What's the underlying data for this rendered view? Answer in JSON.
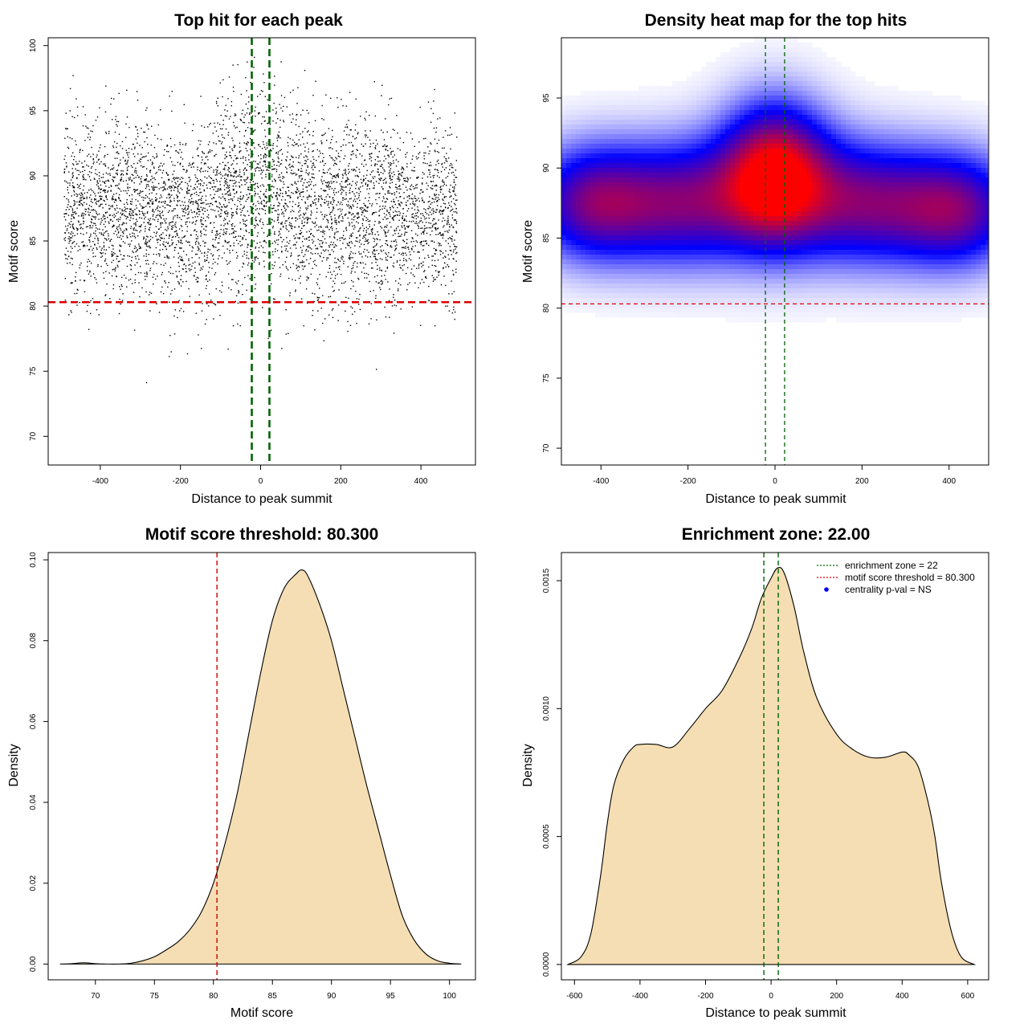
{
  "chart_data": [
    {
      "type": "scatter",
      "title": "Top hit for each peak",
      "xlabel": "Distance to peak summit",
      "ylabel": "Motif score",
      "xlim": [
        -530,
        536
      ],
      "ylim": [
        67.8,
        100.6
      ],
      "x_ticks": [
        -400,
        -200,
        0,
        200,
        400
      ],
      "y_ticks": [
        70,
        75,
        80,
        85,
        90,
        95,
        100
      ],
      "point_count": 5200,
      "reference_lines": {
        "vertical": [
          -22,
          22
        ],
        "horizontal": 80.3
      },
      "line_colors": {
        "vertical": "#006400",
        "horizontal": "#dd0000"
      },
      "points_color": "#000000"
    },
    {
      "type": "heatmap",
      "title": "Density heat map for the top hits",
      "xlabel": "Distance to peak summit",
      "ylabel": "Motif score",
      "xlim": [
        -491,
        491
      ],
      "ylim": [
        68.8,
        99.3
      ],
      "x_ticks": [
        -400,
        -200,
        0,
        200,
        400
      ],
      "y_ticks": [
        70,
        75,
        80,
        85,
        90,
        95
      ],
      "reference_lines": {
        "vertical": [
          -22,
          22
        ],
        "horizontal": 80.3
      },
      "line_colors": {
        "vertical": "#006400",
        "horizontal": "#dd0000"
      },
      "color_scale": [
        "#ffffff",
        "#0000ff",
        "#ff0000"
      ],
      "density_components": [
        {
          "x": -420,
          "y": 87.5,
          "sx": 100,
          "sy": 2.8,
          "w": 0.85
        },
        {
          "x": -200,
          "y": 87.5,
          "sx": 120,
          "sy": 3.0,
          "w": 0.85
        },
        {
          "x": 0,
          "y": 89.5,
          "sx": 85,
          "sy": 3.4,
          "w": 1.3
        },
        {
          "x": 200,
          "y": 87.5,
          "sx": 120,
          "sy": 3.0,
          "w": 0.85
        },
        {
          "x": 420,
          "y": 87.0,
          "sx": 100,
          "sy": 2.8,
          "w": 0.85
        }
      ]
    },
    {
      "type": "area",
      "title": "Motif score threshold: 80.300",
      "xlabel": "Motif score",
      "ylabel": "Density",
      "xlim": [
        66.0,
        102.2
      ],
      "ylim": [
        -0.0039,
        0.1018
      ],
      "x_ticks": [
        70,
        75,
        80,
        85,
        90,
        95,
        100
      ],
      "y_ticks": [
        0.0,
        0.02,
        0.04,
        0.06,
        0.08,
        0.1
      ],
      "y_tick_labels": [
        "0.00",
        "0.02",
        "0.04",
        "0.06",
        "0.08",
        "0.10"
      ],
      "x": [
        67,
        68,
        69,
        70,
        71,
        72,
        73,
        74,
        75,
        76,
        77,
        78,
        79,
        80,
        81,
        82,
        83,
        84,
        85,
        86,
        87,
        87.5,
        88,
        89,
        90,
        91,
        92,
        93,
        94,
        95,
        96,
        97,
        98,
        99,
        100,
        101
      ],
      "y": [
        0.0,
        0.0001,
        0.0003,
        0.0001,
        0.0,
        0.0,
        0.0002,
        0.0008,
        0.0018,
        0.0035,
        0.0055,
        0.0085,
        0.013,
        0.02,
        0.03,
        0.042,
        0.057,
        0.072,
        0.085,
        0.093,
        0.0965,
        0.0975,
        0.096,
        0.089,
        0.08,
        0.068,
        0.056,
        0.044,
        0.033,
        0.022,
        0.012,
        0.006,
        0.0025,
        0.0008,
        0.0002,
        0.0
      ],
      "fill_color": "#f5deb3",
      "reference_lines": {
        "vertical": [
          80.3
        ]
      },
      "line_colors": {
        "vertical": "#cc0000"
      }
    },
    {
      "type": "area",
      "title": "Enrichment zone: 22.00",
      "xlabel": "Distance to peak summit",
      "ylabel": "Density",
      "xlim": [
        -640,
        664
      ],
      "ylim": [
        -6e-05,
        0.00161
      ],
      "x_ticks": [
        -600,
        -400,
        -200,
        0,
        200,
        400,
        600
      ],
      "y_ticks": [
        0.0,
        0.0005,
        0.001,
        0.0015
      ],
      "y_tick_labels": [
        "0.0000",
        "0.0005",
        "0.0010",
        "0.0015"
      ],
      "x": [
        -620,
        -580,
        -550,
        -520,
        -500,
        -480,
        -450,
        -420,
        -400,
        -350,
        -300,
        -250,
        -200,
        -150,
        -100,
        -60,
        -30,
        0,
        20,
        40,
        70,
        100,
        140,
        200,
        250,
        300,
        350,
        400,
        420,
        450,
        480,
        500,
        520,
        550,
        580,
        620
      ],
      "y": [
        0.0,
        3e-05,
        0.00012,
        0.00035,
        0.00055,
        0.0007,
        0.0008,
        0.00085,
        0.00086,
        0.00086,
        0.00085,
        0.00092,
        0.001,
        0.00107,
        0.00119,
        0.00131,
        0.00143,
        0.00151,
        0.00155,
        0.00153,
        0.0014,
        0.00122,
        0.00104,
        0.0009,
        0.00084,
        0.00081,
        0.00081,
        0.00083,
        0.00082,
        0.00077,
        0.00063,
        0.0005,
        0.00032,
        0.00013,
        3e-05,
        0.0
      ],
      "fill_color": "#f5deb3",
      "reference_lines": {
        "vertical": [
          -22,
          22
        ]
      },
      "line_colors": {
        "vertical": "#006400"
      },
      "legend": {
        "placement": "top-right",
        "entries": [
          {
            "label": "enrichment zone = 22",
            "color": "#006400",
            "style": "dotted-line"
          },
          {
            "label": "motif score threshold = 80.300",
            "color": "#dd0000",
            "style": "dotted-line"
          },
          {
            "label": "centrality p-val = NS",
            "color": "#0000ff",
            "style": "point"
          }
        ]
      }
    }
  ]
}
